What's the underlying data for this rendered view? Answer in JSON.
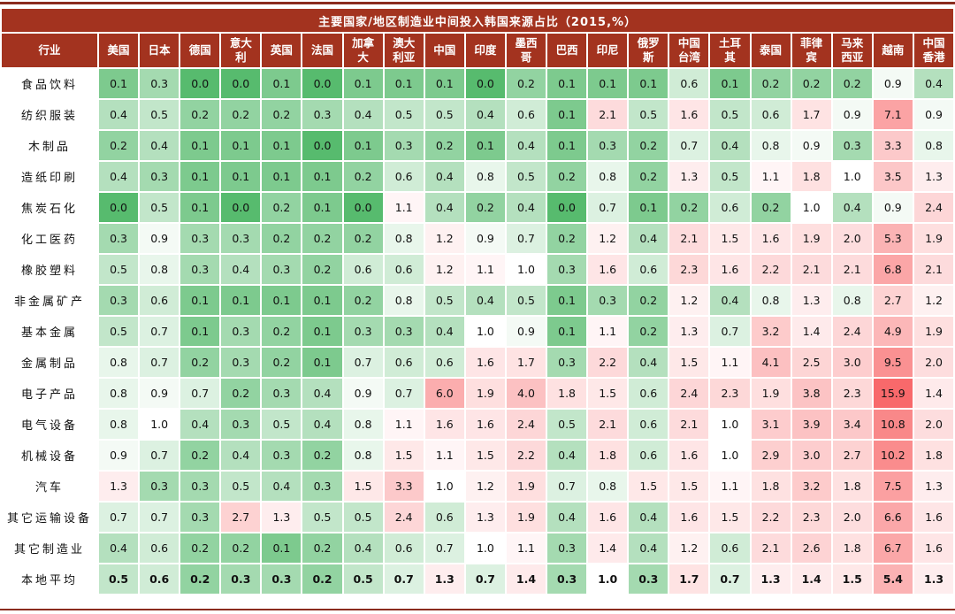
{
  "chart_data": {
    "type": "heatmap",
    "title": "主要国家/地区制造业中间投入韩国来源占比（2015,%）",
    "row_header": "行业",
    "columns": [
      "美国",
      "日本",
      "德国",
      "意大利",
      "英国",
      "法国",
      "加拿大",
      "澳大利亚",
      "中国",
      "印度",
      "墨西哥",
      "巴西",
      "印尼",
      "俄罗斯",
      "中国台湾",
      "土耳其",
      "泰国",
      "菲律宾",
      "马来西亚",
      "越南",
      "中国香港"
    ],
    "column_lines": [
      [
        "美国"
      ],
      [
        "日本"
      ],
      [
        "德国"
      ],
      [
        "意大",
        "利"
      ],
      [
        "英国"
      ],
      [
        "法国"
      ],
      [
        "加拿",
        "大"
      ],
      [
        "澳大",
        "利亚"
      ],
      [
        "中国"
      ],
      [
        "印度"
      ],
      [
        "墨西",
        "哥"
      ],
      [
        "巴西"
      ],
      [
        "印尼"
      ],
      [
        "俄罗",
        "斯"
      ],
      [
        "中国",
        "台湾"
      ],
      [
        "土耳",
        "其"
      ],
      [
        "泰国"
      ],
      [
        "菲律",
        "宾"
      ],
      [
        "马来",
        "西亚"
      ],
      [
        "越南"
      ],
      [
        "中国",
        "香港"
      ]
    ],
    "rows": [
      {
        "label": "食品饮料",
        "values": [
          "0.1",
          "0.3",
          "0.0",
          "0.0",
          "0.1",
          "0.0",
          "0.1",
          "0.1",
          "0.1",
          "0.0",
          "0.2",
          "0.1",
          "0.1",
          "0.1",
          "0.6",
          "0.1",
          "0.2",
          "0.2",
          "0.2",
          "0.9",
          "0.4"
        ]
      },
      {
        "label": "纺织服装",
        "values": [
          "0.4",
          "0.5",
          "0.2",
          "0.2",
          "0.2",
          "0.3",
          "0.4",
          "0.5",
          "0.5",
          "0.4",
          "0.6",
          "0.1",
          "2.1",
          "0.5",
          "1.6",
          "0.5",
          "0.6",
          "1.7",
          "0.9",
          "7.1",
          "0.9"
        ]
      },
      {
        "label": "木制品",
        "values": [
          "0.2",
          "0.4",
          "0.1",
          "0.1",
          "0.1",
          "0.0",
          "0.1",
          "0.3",
          "0.2",
          "0.1",
          "0.4",
          "0.1",
          "0.3",
          "0.2",
          "0.7",
          "0.4",
          "0.8",
          "0.9",
          "0.3",
          "3.3",
          "0.8"
        ]
      },
      {
        "label": "造纸印刷",
        "values": [
          "0.4",
          "0.3",
          "0.1",
          "0.1",
          "0.1",
          "0.1",
          "0.2",
          "0.6",
          "0.4",
          "0.8",
          "0.5",
          "0.2",
          "0.8",
          "0.2",
          "1.3",
          "0.5",
          "1.1",
          "1.8",
          "1.0",
          "3.5",
          "1.3"
        ]
      },
      {
        "label": "焦炭石化",
        "values": [
          "0.0",
          "0.5",
          "0.1",
          "0.0",
          "0.2",
          "0.1",
          "0.0",
          "1.1",
          "0.4",
          "0.2",
          "0.4",
          "0.0",
          "0.7",
          "0.1",
          "0.2",
          "0.6",
          "0.2",
          "1.0",
          "0.4",
          "0.9",
          "2.4"
        ]
      },
      {
        "label": "化工医药",
        "values": [
          "0.3",
          "0.9",
          "0.3",
          "0.3",
          "0.2",
          "0.2",
          "0.2",
          "0.8",
          "1.2",
          "0.9",
          "0.7",
          "0.2",
          "1.2",
          "0.4",
          "2.1",
          "1.5",
          "1.6",
          "1.9",
          "2.0",
          "5.3",
          "1.9"
        ]
      },
      {
        "label": "橡胶塑料",
        "values": [
          "0.5",
          "0.8",
          "0.3",
          "0.4",
          "0.3",
          "0.2",
          "0.6",
          "0.6",
          "1.2",
          "1.1",
          "1.0",
          "0.3",
          "1.6",
          "0.6",
          "2.3",
          "1.6",
          "2.2",
          "2.1",
          "2.1",
          "6.8",
          "2.1"
        ]
      },
      {
        "label": "非金属矿产",
        "values": [
          "0.3",
          "0.6",
          "0.1",
          "0.1",
          "0.1",
          "0.1",
          "0.2",
          "0.8",
          "0.5",
          "0.4",
          "0.5",
          "0.1",
          "0.3",
          "0.2",
          "1.2",
          "0.4",
          "0.8",
          "1.3",
          "0.8",
          "2.7",
          "1.2"
        ]
      },
      {
        "label": "基本金属",
        "values": [
          "0.5",
          "0.7",
          "0.1",
          "0.3",
          "0.2",
          "0.1",
          "0.3",
          "0.3",
          "0.4",
          "1.0",
          "0.9",
          "0.1",
          "1.1",
          "0.2",
          "1.3",
          "0.7",
          "3.2",
          "1.4",
          "2.4",
          "4.9",
          "1.9"
        ]
      },
      {
        "label": "金属制品",
        "values": [
          "0.8",
          "0.7",
          "0.2",
          "0.3",
          "0.2",
          "0.1",
          "0.7",
          "0.6",
          "0.6",
          "1.6",
          "1.7",
          "0.3",
          "2.2",
          "0.4",
          "1.5",
          "1.1",
          "4.1",
          "2.5",
          "3.0",
          "9.5",
          "2.0"
        ]
      },
      {
        "label": "电子产品",
        "values": [
          "0.8",
          "0.9",
          "0.7",
          "0.2",
          "0.3",
          "0.4",
          "0.9",
          "0.7",
          "6.0",
          "1.9",
          "4.0",
          "1.8",
          "1.5",
          "0.6",
          "2.4",
          "2.3",
          "1.9",
          "3.8",
          "2.3",
          "15.9",
          "1.4"
        ]
      },
      {
        "label": "电气设备",
        "values": [
          "0.8",
          "1.0",
          "0.4",
          "0.3",
          "0.5",
          "0.4",
          "0.8",
          "1.1",
          "1.6",
          "1.6",
          "2.4",
          "0.5",
          "2.1",
          "0.6",
          "2.1",
          "1.0",
          "3.1",
          "3.9",
          "3.4",
          "10.8",
          "2.0"
        ]
      },
      {
        "label": "机械设备",
        "values": [
          "0.9",
          "0.7",
          "0.2",
          "0.4",
          "0.3",
          "0.2",
          "0.8",
          "1.5",
          "1.1",
          "1.5",
          "2.2",
          "0.4",
          "1.8",
          "0.6",
          "1.6",
          "1.0",
          "2.9",
          "3.0",
          "2.7",
          "10.2",
          "1.8"
        ]
      },
      {
        "label": "汽车",
        "values": [
          "1.3",
          "0.3",
          "0.3",
          "0.5",
          "0.4",
          "0.3",
          "1.5",
          "3.3",
          "1.0",
          "1.2",
          "1.9",
          "0.7",
          "0.8",
          "1.5",
          "1.5",
          "1.1",
          "1.8",
          "3.2",
          "1.8",
          "7.5",
          "1.3"
        ]
      },
      {
        "label": "其它运输设备",
        "values": [
          "0.7",
          "0.7",
          "0.3",
          "2.7",
          "1.3",
          "0.5",
          "0.5",
          "2.4",
          "0.6",
          "1.3",
          "1.9",
          "0.4",
          "1.6",
          "0.4",
          "1.6",
          "1.5",
          "2.2",
          "2.3",
          "2.0",
          "6.6",
          "1.6"
        ]
      },
      {
        "label": "其它制造业",
        "values": [
          "0.4",
          "0.6",
          "0.2",
          "0.2",
          "0.1",
          "0.2",
          "0.4",
          "0.6",
          "0.7",
          "1.0",
          "1.1",
          "0.3",
          "1.4",
          "0.4",
          "1.2",
          "0.6",
          "2.1",
          "2.6",
          "1.8",
          "6.7",
          "1.6"
        ]
      }
    ],
    "average_row": {
      "label": "本地平均",
      "values": [
        "0.5",
        "0.6",
        "0.2",
        "0.3",
        "0.3",
        "0.2",
        "0.5",
        "0.7",
        "1.3",
        "0.7",
        "1.4",
        "0.3",
        "1.0",
        "0.3",
        "1.7",
        "0.7",
        "1.3",
        "1.4",
        "1.5",
        "5.4",
        "1.3"
      ]
    },
    "color_scale": {
      "low": "#57bb6e",
      "mid": "#ffffff",
      "high": "#f8696b",
      "mid_value": 1.0,
      "high_value": 15.9
    },
    "colors": {
      "header_bg": "#a3331f",
      "header_text": "#ffffff",
      "frame_line": "#8b2c1e"
    }
  }
}
